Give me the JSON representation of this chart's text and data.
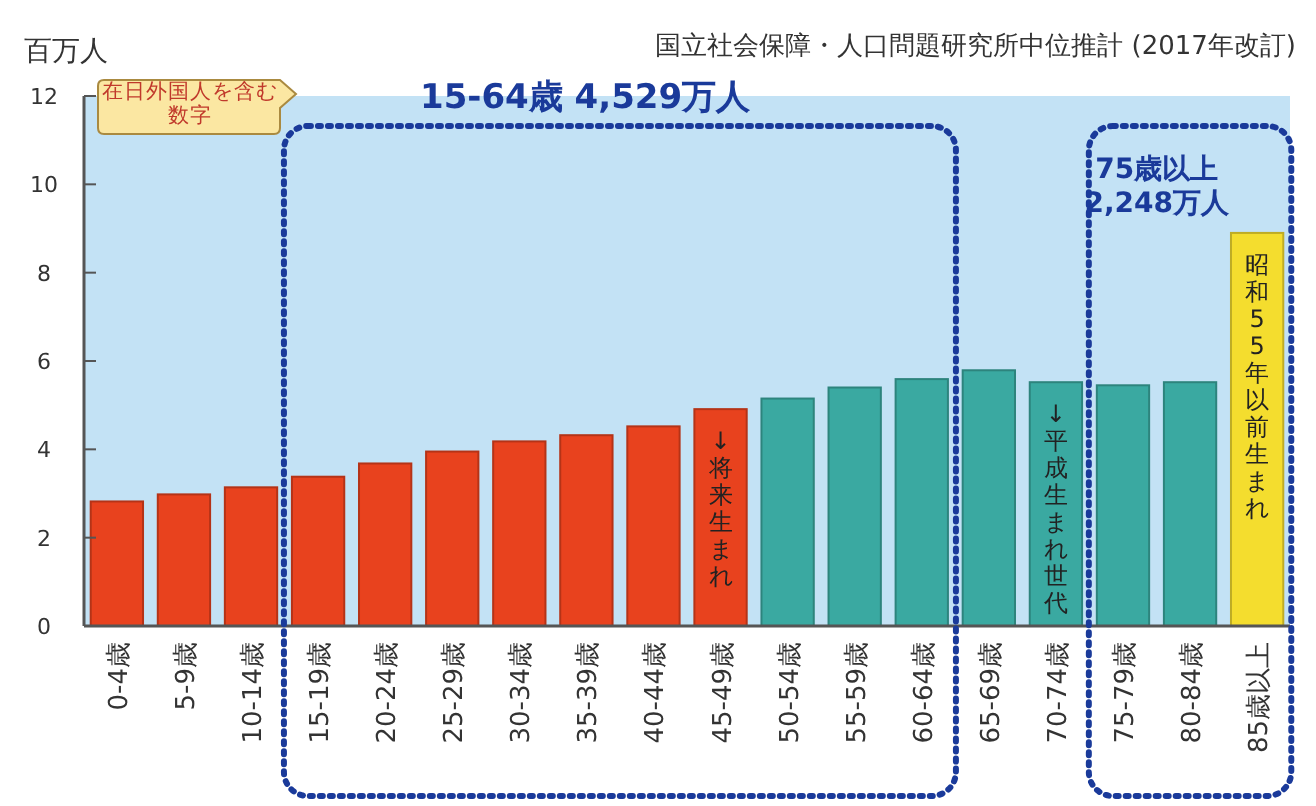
{
  "chart_data": {
    "type": "bar",
    "ylabel": "百万人",
    "title": "国立社会保障・人口問題研究所中位推計 (2017年改訂)",
    "categories": [
      "0-4歳",
      "5-9歳",
      "10-14歳",
      "15-19歳",
      "20-24歳",
      "25-29歳",
      "30-34歳",
      "35-39歳",
      "40-44歳",
      "45-49歳",
      "50-54歳",
      "55-59歳",
      "60-64歳",
      "65-69歳",
      "70-74歳",
      "75-79歳",
      "80-84歳",
      "85歳以上"
    ],
    "values": [
      2.82,
      2.98,
      3.14,
      3.38,
      3.68,
      3.95,
      4.18,
      4.32,
      4.52,
      4.91,
      5.15,
      5.4,
      5.59,
      5.79,
      5.52,
      5.45,
      5.52,
      8.9
    ],
    "colors": [
      "#e8421e",
      "#e8421e",
      "#e8421e",
      "#e8421e",
      "#e8421e",
      "#e8421e",
      "#e8421e",
      "#e8421e",
      "#e8421e",
      "#e8421e",
      "#3aa9a1",
      "#3aa9a1",
      "#3aa9a1",
      "#3aa9a1",
      "#3aa9a1",
      "#3aa9a1",
      "#3aa9a1",
      "#f4dd2e"
    ],
    "ylim": [
      0,
      12
    ],
    "yticks": [
      0,
      2,
      4,
      6,
      8,
      10,
      12
    ],
    "annotations": [
      "在日外国人を含む数字",
      "15-64歳 4,529万人",
      "75歳以上 2,248万人",
      "↓将来生まれ",
      "↓平成生まれ世代",
      "昭和55年以前生まれ"
    ]
  }
}
